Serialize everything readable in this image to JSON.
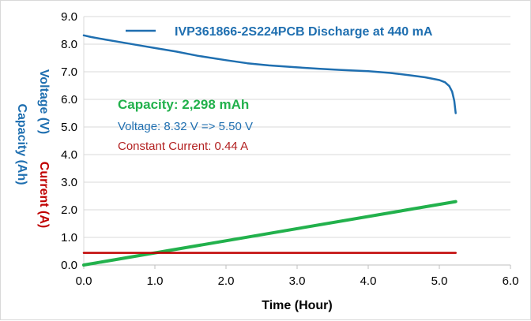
{
  "chart_data": {
    "type": "line",
    "title": "",
    "xlabel": "Time (Hour)",
    "ylabels": [
      {
        "text": "Voltage (V)",
        "color": "#1f6fb0"
      },
      {
        "text": "Capacity (Ah)",
        "color": "#1f6fb0"
      },
      {
        "text": "Current (A)",
        "color": "#c00000"
      }
    ],
    "xlim": [
      0,
      6
    ],
    "ylim": [
      0,
      9
    ],
    "xticks": [
      "0.0",
      "1.0",
      "2.0",
      "3.0",
      "4.0",
      "5.0",
      "6.0"
    ],
    "yticks": [
      "0.0",
      "1.0",
      "2.0",
      "3.0",
      "4.0",
      "5.0",
      "6.0",
      "7.0",
      "8.0",
      "9.0"
    ],
    "grid": "horizontal",
    "legend": {
      "placement": "top",
      "label": "IVP361866-2S224PCB Discharge at 440 mA"
    },
    "series": [
      {
        "name": "IVP361866-2S224PCB Discharge at 440 mA",
        "color": "#1f6fb0",
        "x": [
          0,
          0.1,
          0.3,
          0.5,
          0.8,
          1.0,
          1.3,
          1.6,
          2.0,
          2.3,
          2.6,
          3.0,
          3.3,
          3.6,
          4.0,
          4.3,
          4.6,
          4.8,
          5.0,
          5.08,
          5.14,
          5.18,
          5.21,
          5.23
        ],
        "y": [
          8.32,
          8.26,
          8.17,
          8.08,
          7.95,
          7.86,
          7.73,
          7.58,
          7.42,
          7.31,
          7.23,
          7.16,
          7.11,
          7.07,
          7.02,
          6.96,
          6.87,
          6.8,
          6.7,
          6.62,
          6.48,
          6.28,
          5.95,
          5.5
        ]
      },
      {
        "name": "",
        "color": "#22b14c",
        "x": [
          0,
          5.23
        ],
        "y": [
          0,
          2.298
        ]
      },
      {
        "name": "",
        "color": "#c00000",
        "x": [
          0,
          5.23
        ],
        "y": [
          0.44,
          0.44
        ]
      }
    ],
    "annotations": [
      {
        "text": "Capacity: 2,298 mAh",
        "color": "#22b14c"
      },
      {
        "text": "Voltage: 8.32 V => 5.50 V",
        "color": "#1f6fb0"
      },
      {
        "text": "Constant Current: 0.44 A",
        "color": "#b21f1f"
      }
    ]
  }
}
